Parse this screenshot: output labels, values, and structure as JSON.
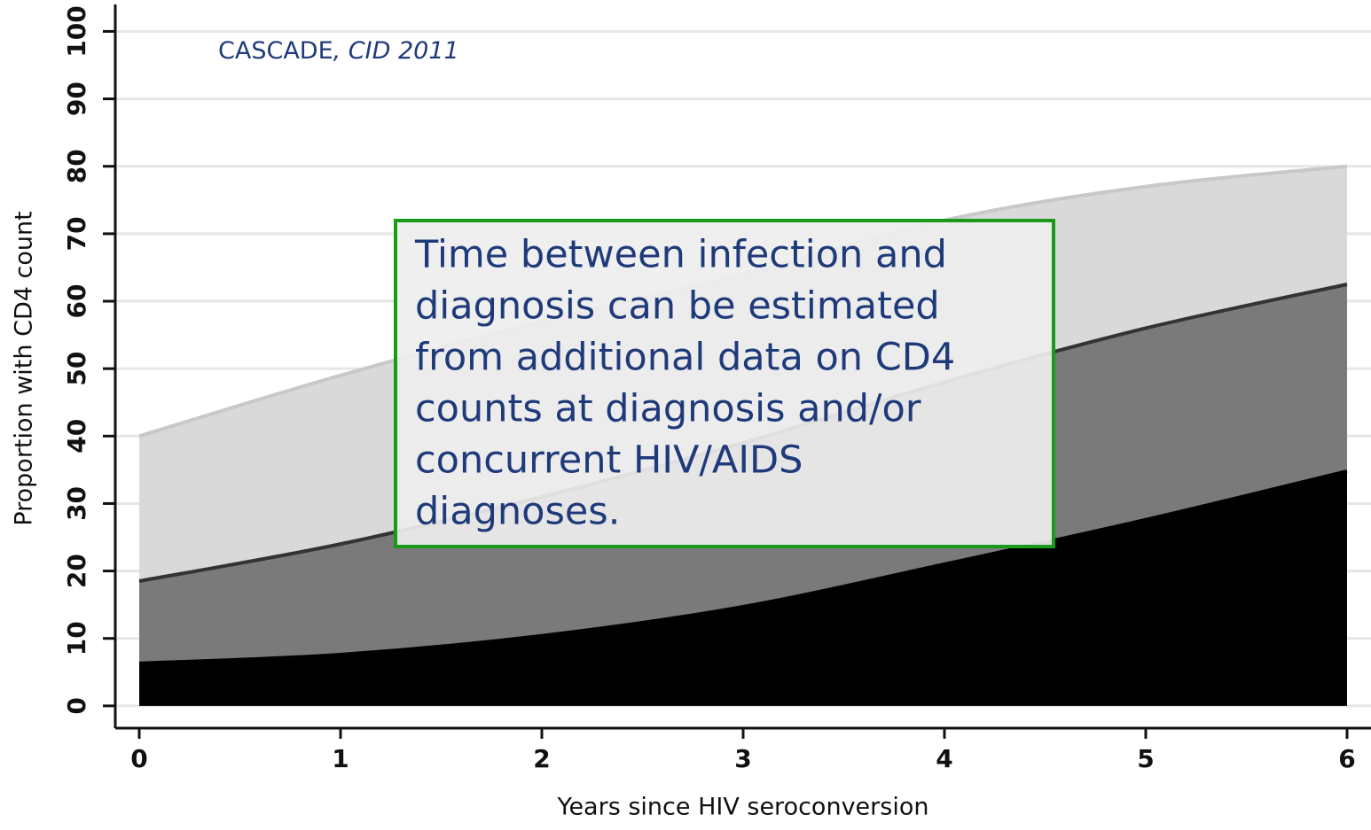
{
  "chart_data": {
    "type": "area",
    "x_label": "Years since HIV  seroconversion",
    "y_label": "Proportion with CD4 count",
    "source_note": {
      "text": "CASCADE",
      "italic_text": ", CID 2011"
    },
    "callout": {
      "lines": [
        "Time between infection and",
        "diagnosis can be estimated",
        "from additional data on CD4",
        "counts at diagnosis and/or",
        "concurrent HIV/AIDS",
        "diagnoses."
      ],
      "border_color": "#1a9a1a"
    },
    "x": [
      0,
      1,
      2,
      3,
      4,
      5,
      6
    ],
    "series": [
      {
        "color": "#d9d9d9",
        "edge": "#c8c8c8",
        "values": [
          40,
          49,
          57,
          64,
          72,
          77,
          80
        ]
      },
      {
        "color": "#7a7a7a",
        "edge": "#333333",
        "values": [
          18.5,
          24,
          31,
          39,
          48,
          56,
          62.5
        ]
      },
      {
        "color": "#000000",
        "edge": "#000000",
        "values": [
          6.3,
          7.6,
          10.4,
          14.7,
          21,
          27.6,
          34.8
        ]
      }
    ],
    "xlim": [
      -0.119,
      6.119
    ],
    "ylim": [
      -3.3,
      104
    ],
    "xticks": [
      0,
      1,
      2,
      3,
      4,
      5,
      6
    ],
    "yticks": [
      0,
      10,
      20,
      30,
      40,
      50,
      60,
      70,
      80,
      90,
      100
    ],
    "grid": true
  }
}
